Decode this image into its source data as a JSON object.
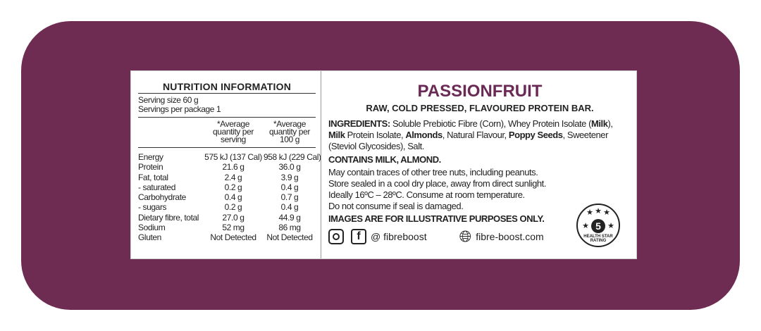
{
  "nutrition": {
    "title": "NUTRITION INFORMATION",
    "serving_size": "Serving size 60 g",
    "servings_per_package": "Servings per package 1",
    "col_serving": "*Average quantity per serving",
    "col_100g": "*Average quantity per 100 g",
    "rows": [
      {
        "name": "Energy",
        "serving": "575 kJ (137 Cal)",
        "per100": "958 kJ (229 Cal)"
      },
      {
        "name": "Protein",
        "serving": "21.6 g",
        "per100": "36.0 g"
      },
      {
        "name": "Fat, total",
        "serving": "2.4 g",
        "per100": "3.9 g"
      },
      {
        "name": "- saturated",
        "serving": "0.2 g",
        "per100": "0.4 g"
      },
      {
        "name": "Carbohydrate",
        "serving": "0.4 g",
        "per100": "0.7 g"
      },
      {
        "name": "- sugars",
        "serving": "0.2 g",
        "per100": "0.4 g"
      },
      {
        "name": "Dietary fibre, total",
        "serving": "27.0 g",
        "per100": "44.9 g"
      },
      {
        "name": "Sodium",
        "serving": "52 mg",
        "per100": "86 mg"
      },
      {
        "name": "Gluten",
        "serving": "Not Detected",
        "per100": "Not Detected"
      }
    ]
  },
  "product": {
    "title": "PASSIONFRUIT",
    "subtitle": "RAW, COLD PRESSED, FLAVOURED PROTEIN BAR.",
    "ingredients": [
      {
        "t": "INGREDIENTS:",
        "b": true
      },
      {
        "t": " Soluble Prebiotic Fibre (Corn), Whey Protein Isolate (",
        "b": false
      },
      {
        "t": "Milk",
        "b": true
      },
      {
        "t": "), ",
        "b": false
      },
      {
        "t": "Milk",
        "b": true
      },
      {
        "t": " Protein Isolate, ",
        "b": false
      },
      {
        "t": "Almonds",
        "b": true
      },
      {
        "t": ", Natural Flavour, ",
        "b": false
      },
      {
        "t": "Poppy Seeds",
        "b": true
      },
      {
        "t": ", Sweetener (Steviol Glycosides), Salt.",
        "b": false
      }
    ],
    "contains": "CONTAINS MILK, ALMOND.",
    "notes": [
      "May contain traces of other tree nuts, including peanuts.",
      "Store sealed in a cool dry place, away from direct sunlight.",
      "Ideally 16ºC – 28ºC. Consume at room temperature.",
      "Do not consume if seal is damaged."
    ],
    "disclaimer": "IMAGES ARE FOR ILLUSTRATIVE PURPOSES ONLY.",
    "social_handle": "@ fibreboost",
    "website": "fibre-boost.com",
    "health_star": {
      "rating": "5",
      "label": "HEALTH STAR RATING"
    }
  },
  "colors": {
    "background": "#6e2c52",
    "title": "#6b2a55"
  }
}
